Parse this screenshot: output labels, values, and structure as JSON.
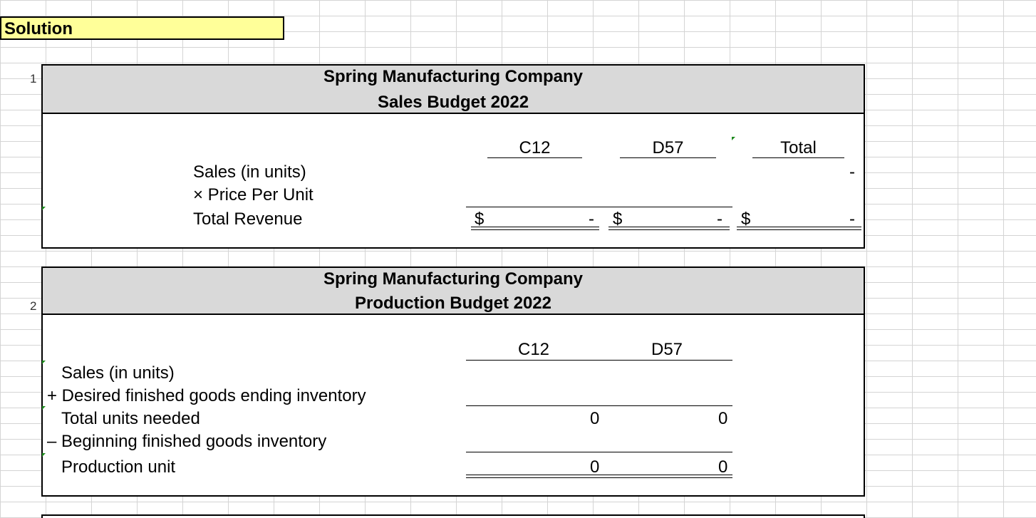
{
  "solution_label": "Solution",
  "row_numbers": [
    "1",
    "2"
  ],
  "sales_budget": {
    "company": "Spring Manufacturing Company",
    "title": "Sales Budget 2022",
    "columns": [
      "C12",
      "D57",
      "Total"
    ],
    "rows": [
      {
        "label": "Sales (in units)",
        "c12": "",
        "d57": "",
        "total": "-"
      },
      {
        "label": "× Price Per Unit",
        "c12": "",
        "d57": "",
        "total": ""
      },
      {
        "label": "Total Revenue",
        "currency": "$",
        "c12": "-",
        "d57": "-",
        "total": "-"
      }
    ]
  },
  "production_budget": {
    "company": "Spring Manufacturing Company",
    "title": "Production Budget 2022",
    "columns": [
      "C12",
      "D57"
    ],
    "rows": [
      {
        "label": "Sales (in units)",
        "c12": "",
        "d57": ""
      },
      {
        "label": "+ Desired finished goods ending inventory",
        "c12": "",
        "d57": ""
      },
      {
        "label": "Total units needed",
        "c12": "0",
        "d57": "0"
      },
      {
        "label": "–  Beginning finished goods inventory",
        "c12": "",
        "d57": ""
      },
      {
        "label": "Production unit",
        "c12": "0",
        "d57": "0"
      }
    ]
  }
}
